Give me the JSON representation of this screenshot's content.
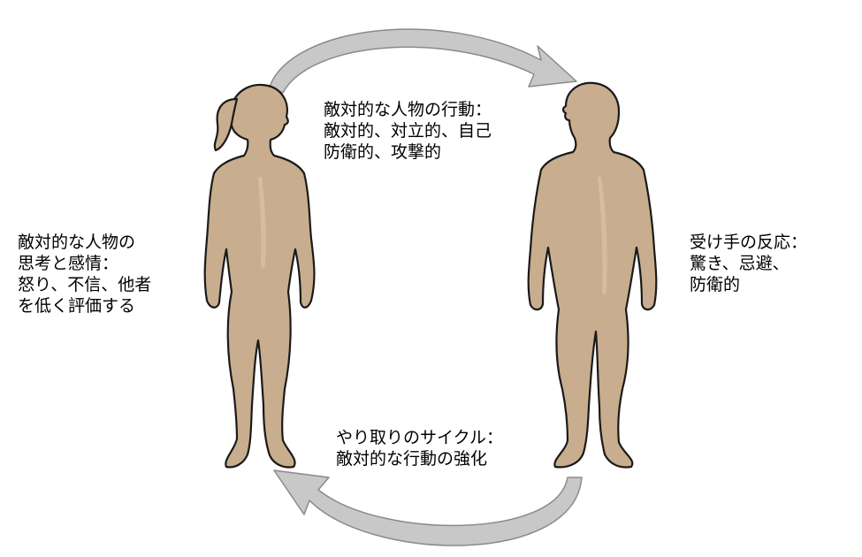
{
  "colors": {
    "skin": "#c8ad8e",
    "skin_highlight": "#d9c3aa",
    "outline": "#1a1a1a",
    "arrow_fill": "#c8c8c8",
    "arrow_stroke": "#8a8a8a"
  },
  "labels": {
    "left": [
      "敵対的な人物の",
      "思考と感情：",
      "怒り、不信、他者",
      "を低く評価する"
    ],
    "top": [
      "敵対的な人物の行動：",
      "敵対的、対立的、自己",
      "防衛的、攻撃的"
    ],
    "right": [
      "受け手の反応：",
      "驚き、忌避、",
      "防衛的"
    ],
    "bottom": [
      "やり取りのサイクル：",
      "敵対的な行動の強化"
    ]
  }
}
